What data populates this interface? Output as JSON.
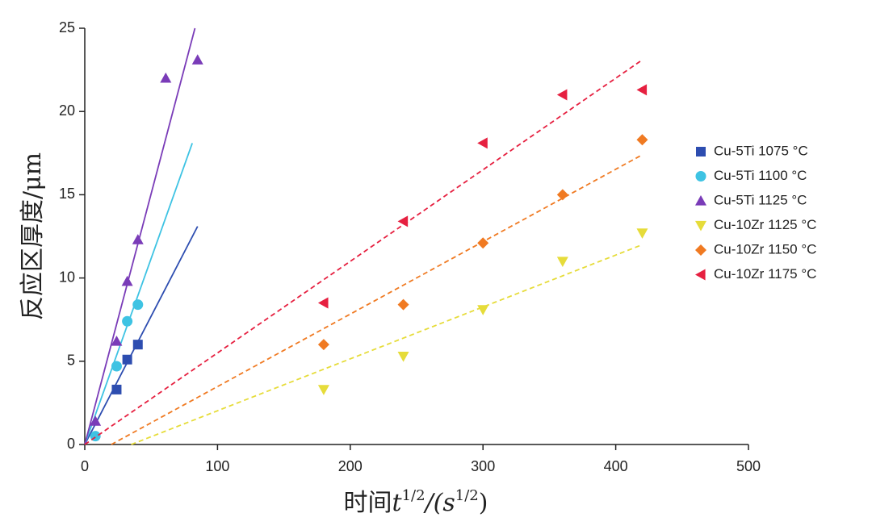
{
  "chart_data": {
    "type": "scatter",
    "y_label": "反应区厚度/μm",
    "x_label_parts": [
      "时间",
      "t",
      "1/2",
      "/(s",
      "1/2",
      ")"
    ],
    "xlim": [
      0,
      500
    ],
    "xticks": [
      0,
      100,
      200,
      300,
      400,
      500
    ],
    "ylim": [
      0,
      25
    ],
    "yticks": [
      0,
      5,
      10,
      15,
      20,
      25
    ],
    "legend": "right",
    "series": [
      {
        "name": "Cu-5Ti 1075 °C",
        "color": "#2d4db0",
        "marker": "square",
        "line_style": "solid",
        "x": [
          24,
          32,
          40
        ],
        "y": [
          3.3,
          5.1,
          6.0
        ],
        "fit": {
          "x": [
            0,
            85
          ],
          "y": [
            0,
            13.1
          ]
        }
      },
      {
        "name": "Cu-5Ti  1100 °C",
        "color": "#3ec3e3",
        "marker": "circle",
        "line_style": "solid",
        "x": [
          8,
          24,
          32,
          40
        ],
        "y": [
          0.5,
          4.7,
          7.4,
          8.4
        ],
        "fit": {
          "x": [
            0,
            81
          ],
          "y": [
            0,
            18.1
          ]
        }
      },
      {
        "name": "Cu-5Ti 1125 °C",
        "color": "#7a3cb8",
        "marker": "triangle-up",
        "line_style": "solid",
        "x": [
          8,
          24,
          32,
          40,
          61,
          85
        ],
        "y": [
          1.4,
          6.2,
          9.8,
          12.3,
          22.0,
          23.1
        ],
        "fit": {
          "x": [
            0,
            83
          ],
          "y": [
            0,
            25
          ]
        }
      },
      {
        "name": "Cu-10Zr 1125 °C",
        "color": "#e6dc3a",
        "marker": "triangle-down",
        "line_style": "dashed",
        "x": [
          180,
          240,
          300,
          360,
          420
        ],
        "y": [
          3.3,
          5.3,
          8.1,
          11.0,
          12.7
        ],
        "fit": {
          "x": [
            35,
            420
          ],
          "y": [
            0,
            12.0
          ]
        }
      },
      {
        "name": "Cu-10Zr 1150 °C",
        "color": "#f07a22",
        "marker": "diamond",
        "line_style": "dashed",
        "x": [
          180,
          240,
          300,
          360,
          420
        ],
        "y": [
          6.0,
          8.4,
          12.1,
          15.0,
          18.3
        ],
        "fit": {
          "x": [
            20,
            420
          ],
          "y": [
            0,
            17.4
          ]
        }
      },
      {
        "name": "Cu-10Zr 1175 °C",
        "color": "#e62040",
        "marker": "triangle-left",
        "line_style": "dashed",
        "x": [
          180,
          240,
          300,
          360,
          420
        ],
        "y": [
          8.5,
          13.4,
          18.1,
          21.0,
          21.3
        ],
        "fit": {
          "x": [
            0,
            420
          ],
          "y": [
            0,
            23.1
          ]
        }
      }
    ]
  }
}
